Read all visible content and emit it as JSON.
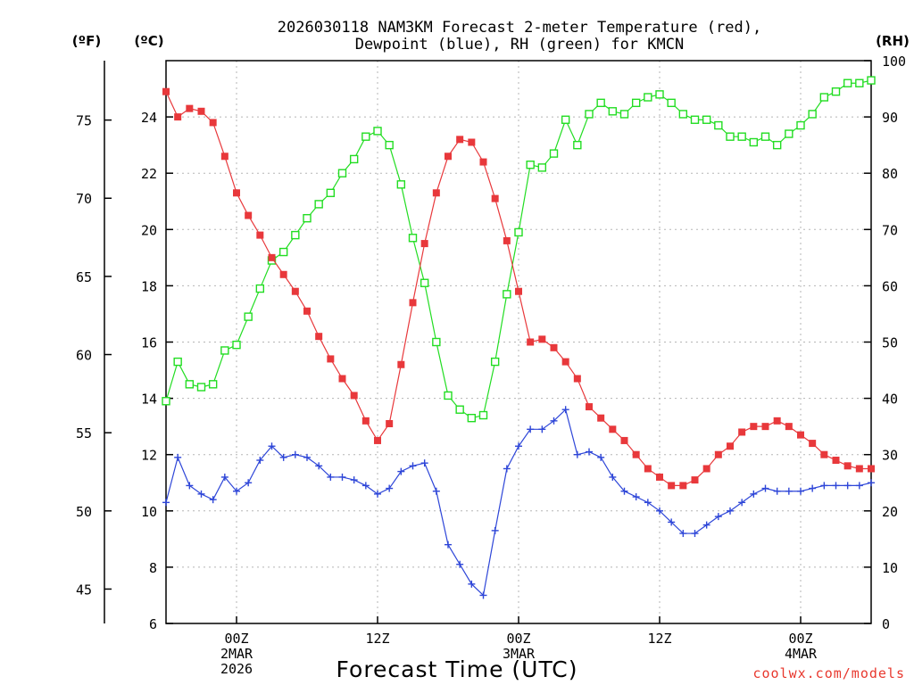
{
  "chart_data": {
    "type": "line",
    "title_line1": "2026030118 NAM3KM Forecast 2-meter Temperature (red),",
    "title_line2": "Dewpoint (blue), RH (green) for KMCN",
    "xlabel": "Forecast Time (UTC)",
    "credit": "coolwx.com/models",
    "units": {
      "fahrenheit": "(ºF)",
      "celsius": "(ºC)",
      "rh": "(RH)"
    },
    "x_hours": [
      0,
      1,
      2,
      3,
      4,
      5,
      6,
      7,
      8,
      9,
      10,
      11,
      12,
      13,
      14,
      15,
      16,
      17,
      18,
      19,
      20,
      21,
      22,
      23,
      24,
      25,
      26,
      27,
      28,
      29,
      30,
      31,
      32,
      33,
      34,
      35,
      36,
      37,
      38,
      39,
      40,
      41,
      42,
      43,
      44,
      45,
      46,
      47,
      48,
      49,
      50,
      51,
      52,
      53,
      54,
      55,
      56,
      57,
      58,
      59,
      60
    ],
    "xlim": [
      0,
      60
    ],
    "x_ticks": [
      {
        "hour": 6,
        "lines": [
          "00Z",
          "2MAR",
          "2026"
        ]
      },
      {
        "hour": 18,
        "lines": [
          "12Z"
        ]
      },
      {
        "hour": 30,
        "lines": [
          "00Z",
          "3MAR"
        ]
      },
      {
        "hour": 42,
        "lines": [
          "12Z"
        ]
      },
      {
        "hour": 54,
        "lines": [
          "00Z",
          "4MAR"
        ]
      }
    ],
    "y_celsius": {
      "lim": [
        6,
        26
      ],
      "ticks": [
        "6",
        "8",
        "10",
        "12",
        "14",
        "16",
        "18",
        "20",
        "22",
        "24"
      ]
    },
    "y_fahrenheit": {
      "lim": [
        42.8,
        78.8
      ],
      "ticks": [
        "45",
        "50",
        "55",
        "60",
        "65",
        "70",
        "75"
      ]
    },
    "y_rh": {
      "lim": [
        0,
        100
      ],
      "ticks": [
        "0",
        "10",
        "20",
        "30",
        "40",
        "50",
        "60",
        "70",
        "80",
        "90",
        "100"
      ]
    },
    "series": [
      {
        "name": "2-meter Temperature",
        "units": "°C",
        "color": "#e8383b",
        "marker": "filled-square",
        "values": [
          24.9,
          24.0,
          24.3,
          24.2,
          23.8,
          22.6,
          21.3,
          20.5,
          19.8,
          19.0,
          18.4,
          17.8,
          17.1,
          16.2,
          15.4,
          14.7,
          14.1,
          13.2,
          12.5,
          13.1,
          15.2,
          17.4,
          19.5,
          21.3,
          22.6,
          23.2,
          23.1,
          22.4,
          21.1,
          19.6,
          17.8,
          16.0,
          16.1,
          15.8,
          15.3,
          14.7,
          13.7,
          13.3,
          12.9,
          12.5,
          12.0,
          11.5,
          11.2,
          10.9,
          10.9,
          11.1,
          11.5,
          12.0,
          12.3,
          12.8,
          13.0,
          13.0,
          13.2,
          13.0,
          12.7,
          12.4,
          12.0,
          11.8,
          11.6,
          11.5,
          11.5
        ]
      },
      {
        "name": "Dewpoint",
        "units": "°C",
        "color": "#2e46d8",
        "marker": "plus",
        "values": [
          10.3,
          11.9,
          10.9,
          10.6,
          10.4,
          11.2,
          10.7,
          11.0,
          11.8,
          12.3,
          11.9,
          12.0,
          11.9,
          11.6,
          11.2,
          11.2,
          11.1,
          10.9,
          10.6,
          10.8,
          11.4,
          11.6,
          11.7,
          10.7,
          8.8,
          8.1,
          7.4,
          7.0,
          9.3,
          11.5,
          12.3,
          12.9,
          12.9,
          13.2,
          13.6,
          12.0,
          12.1,
          11.9,
          11.2,
          10.7,
          10.5,
          10.3,
          10.0,
          9.6,
          9.2,
          9.2,
          9.5,
          9.8,
          10.0,
          10.3,
          10.6,
          10.8,
          10.7,
          10.7,
          10.7,
          10.8,
          10.9,
          10.9,
          10.9,
          10.9,
          11.0
        ]
      },
      {
        "name": "RH",
        "units": "%",
        "color": "#22dd22",
        "marker": "open-square",
        "values": [
          39.5,
          46.5,
          42.5,
          42.0,
          42.5,
          48.5,
          49.5,
          54.5,
          59.5,
          64.5,
          66.0,
          69.0,
          72.0,
          74.5,
          76.5,
          80.0,
          82.5,
          86.5,
          87.5,
          85.0,
          78.0,
          68.5,
          60.5,
          50.0,
          40.5,
          38.0,
          36.5,
          37.0,
          46.5,
          58.5,
          69.5,
          81.5,
          81.0,
          83.5,
          89.5,
          85.0,
          90.5,
          92.5,
          91.0,
          90.5,
          92.5,
          93.5,
          94.0,
          92.5,
          90.5,
          89.5,
          89.5,
          88.5,
          86.5,
          86.5,
          85.5,
          86.5,
          85.0,
          87.0,
          88.5,
          90.5,
          93.5,
          94.5,
          96.0,
          96.0,
          96.5
        ]
      }
    ]
  }
}
